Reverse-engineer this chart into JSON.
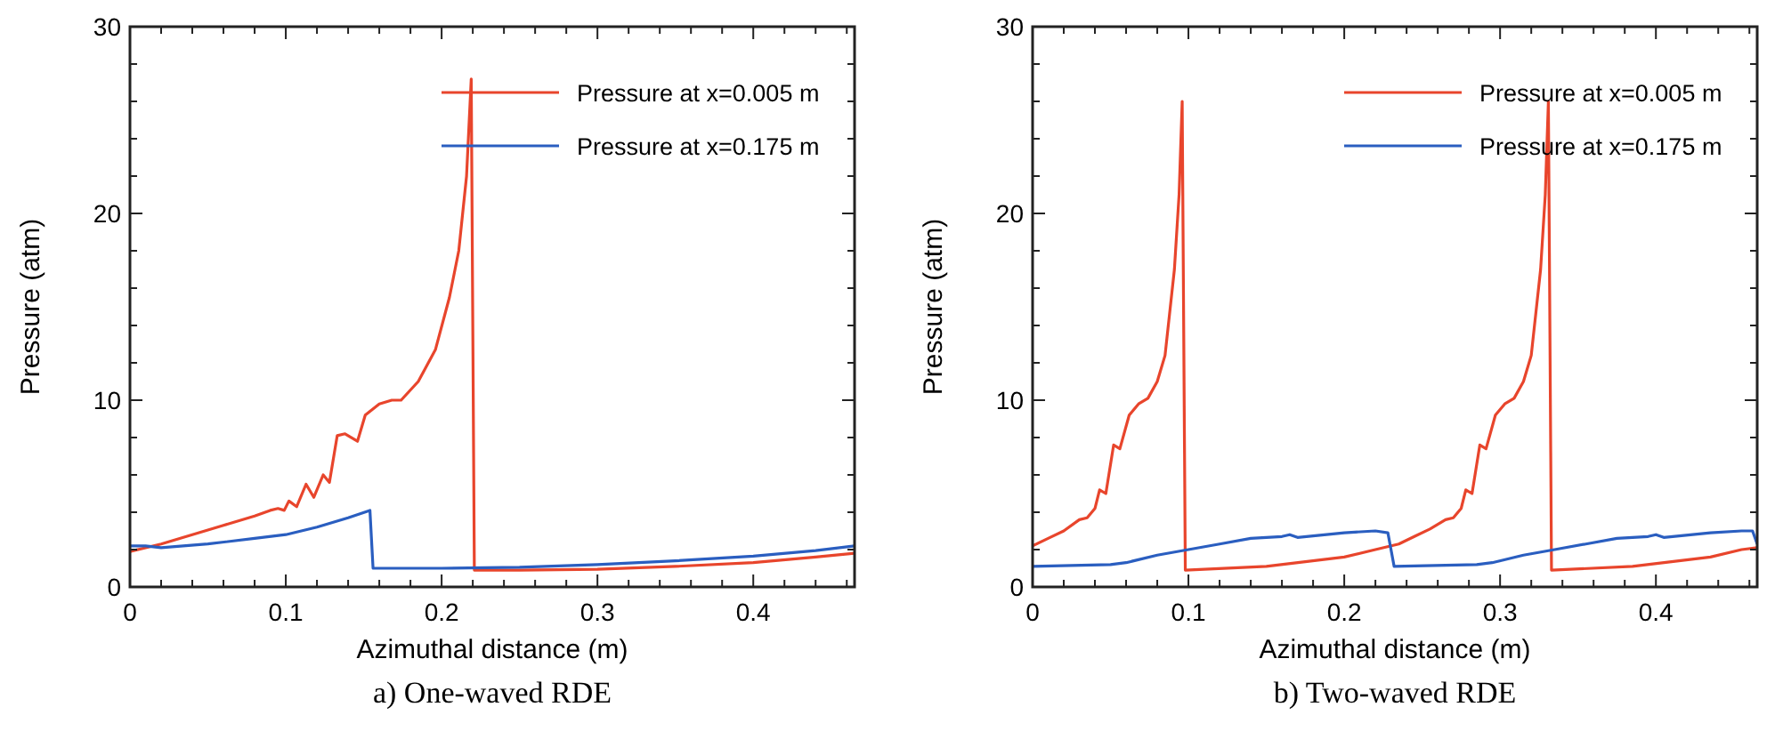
{
  "chart_data": [
    {
      "type": "line",
      "xlabel": "Azimuthal distance (m)",
      "ylabel": "Pressure (atm)",
      "annotations": [
        "a) One-waved RDE"
      ],
      "legend": "top right",
      "grid": false,
      "xlim": [
        0,
        0.465
      ],
      "ylim": [
        0,
        30
      ],
      "xticks": [
        0,
        {
          "value": 0.02,
          "label": null
        },
        {
          "value": 0.04,
          "label": null
        },
        {
          "value": 0.06,
          "label": null
        },
        {
          "value": 0.08,
          "label": null
        },
        0.1,
        {
          "value": 0.12,
          "label": null
        },
        {
          "value": 0.14,
          "label": null
        },
        {
          "value": 0.16,
          "label": null
        },
        {
          "value": 0.18,
          "label": null
        },
        0.2,
        {
          "value": 0.22,
          "label": null
        },
        {
          "value": 0.24,
          "label": null
        },
        {
          "value": 0.26,
          "label": null
        },
        {
          "value": 0.28,
          "label": null
        },
        0.3,
        {
          "value": 0.32,
          "label": null
        },
        {
          "value": 0.34,
          "label": null
        },
        {
          "value": 0.36,
          "label": null
        },
        {
          "value": 0.38,
          "label": null
        },
        0.4,
        {
          "value": 0.42,
          "label": null
        },
        {
          "value": 0.44,
          "label": null
        },
        {
          "value": 0.46,
          "label": null
        }
      ],
      "yticks": [
        0,
        {
          "value": 2,
          "label": null
        },
        {
          "value": 4,
          "label": null
        },
        {
          "value": 6,
          "label": null
        },
        {
          "value": 8,
          "label": null
        },
        10,
        {
          "value": 12,
          "label": null
        },
        {
          "value": 14,
          "label": null
        },
        {
          "value": 16,
          "label": null
        },
        {
          "value": 18,
          "label": null
        },
        20,
        {
          "value": 22,
          "label": null
        },
        {
          "value": 24,
          "label": null
        },
        {
          "value": 26,
          "label": null
        },
        {
          "value": 28,
          "label": null
        },
        30
      ],
      "series": [
        {
          "name": "Pressure at x=0.005 m",
          "color": "#e8452c",
          "x": [
            0,
            0.02,
            0.04,
            0.06,
            0.08,
            0.09,
            0.095,
            0.099,
            0.102,
            0.107,
            0.113,
            0.118,
            0.124,
            0.128,
            0.133,
            0.138,
            0.146,
            0.151,
            0.16,
            0.168,
            0.174,
            0.185,
            0.196,
            0.205,
            0.211,
            0.216,
            0.219,
            0.221,
            0.25,
            0.3,
            0.35,
            0.4,
            0.44,
            0.465
          ],
          "values": [
            1.9,
            2.3,
            2.8,
            3.3,
            3.8,
            4.1,
            4.2,
            4.1,
            4.6,
            4.3,
            5.5,
            4.8,
            6.0,
            5.6,
            8.1,
            8.2,
            7.8,
            9.2,
            9.8,
            10.0,
            10.0,
            11,
            12.7,
            15.5,
            18,
            22,
            27.2,
            0.9,
            0.9,
            0.95,
            1.1,
            1.3,
            1.6,
            1.8
          ]
        },
        {
          "name": "Pressure at x=0.175 m",
          "color": "#2a5ec0",
          "x": [
            0,
            0.01,
            0.02,
            0.05,
            0.08,
            0.1,
            0.12,
            0.14,
            0.154,
            0.156,
            0.2,
            0.25,
            0.3,
            0.35,
            0.4,
            0.44,
            0.465
          ],
          "values": [
            2.2,
            2.2,
            2.1,
            2.3,
            2.6,
            2.8,
            3.2,
            3.7,
            4.1,
            1.0,
            1.0,
            1.05,
            1.2,
            1.4,
            1.65,
            1.95,
            2.2
          ]
        }
      ]
    },
    {
      "type": "line",
      "xlabel": "Azimuthal distance (m)",
      "ylabel": "Pressure (atm)",
      "annotations": [
        "b) Two-waved RDE"
      ],
      "legend": "top right",
      "grid": false,
      "xlim": [
        0,
        0.465
      ],
      "ylim": [
        0,
        30
      ],
      "xticks": [
        0,
        {
          "value": 0.02,
          "label": null
        },
        {
          "value": 0.04,
          "label": null
        },
        {
          "value": 0.06,
          "label": null
        },
        {
          "value": 0.08,
          "label": null
        },
        0.1,
        {
          "value": 0.12,
          "label": null
        },
        {
          "value": 0.14,
          "label": null
        },
        {
          "value": 0.16,
          "label": null
        },
        {
          "value": 0.18,
          "label": null
        },
        0.2,
        {
          "value": 0.22,
          "label": null
        },
        {
          "value": 0.24,
          "label": null
        },
        {
          "value": 0.26,
          "label": null
        },
        {
          "value": 0.28,
          "label": null
        },
        0.3,
        {
          "value": 0.32,
          "label": null
        },
        {
          "value": 0.34,
          "label": null
        },
        {
          "value": 0.36,
          "label": null
        },
        {
          "value": 0.38,
          "label": null
        },
        0.4,
        {
          "value": 0.42,
          "label": null
        },
        {
          "value": 0.44,
          "label": null
        },
        {
          "value": 0.46,
          "label": null
        }
      ],
      "yticks": [
        0,
        {
          "value": 2,
          "label": null
        },
        {
          "value": 4,
          "label": null
        },
        {
          "value": 6,
          "label": null
        },
        {
          "value": 8,
          "label": null
        },
        10,
        {
          "value": 12,
          "label": null
        },
        {
          "value": 14,
          "label": null
        },
        {
          "value": 16,
          "label": null
        },
        {
          "value": 18,
          "label": null
        },
        20,
        {
          "value": 22,
          "label": null
        },
        {
          "value": 24,
          "label": null
        },
        {
          "value": 26,
          "label": null
        },
        {
          "value": 28,
          "label": null
        },
        30
      ],
      "series": [
        {
          "name": "Pressure at x=0.005 m",
          "color": "#e8452c",
          "x": [
            0,
            0.01,
            0.02,
            0.03,
            0.035,
            0.04,
            0.043,
            0.047,
            0.052,
            0.056,
            0.062,
            0.068,
            0.074,
            0.08,
            0.085,
            0.091,
            0.094,
            0.096,
            0.098,
            0.15,
            0.2,
            0.22,
            0.235,
            0.245,
            0.255,
            0.265,
            0.27,
            0.275,
            0.278,
            0.282,
            0.287,
            0.291,
            0.297,
            0.303,
            0.309,
            0.315,
            0.32,
            0.326,
            0.329,
            0.331,
            0.333,
            0.385,
            0.435,
            0.455,
            0.465
          ],
          "values": [
            2.2,
            2.6,
            3.0,
            3.6,
            3.7,
            4.2,
            5.2,
            5.0,
            7.6,
            7.4,
            9.2,
            9.8,
            10.1,
            11,
            12.4,
            17,
            21,
            26,
            0.9,
            1.1,
            1.6,
            2.0,
            2.3,
            2.7,
            3.1,
            3.6,
            3.7,
            4.2,
            5.2,
            5.0,
            7.6,
            7.4,
            9.2,
            9.8,
            10.1,
            11,
            12.4,
            17,
            21,
            26,
            0.9,
            1.1,
            1.6,
            2.0,
            2.1
          ]
        },
        {
          "name": "Pressure at x=0.175 m",
          "color": "#2a5ec0",
          "x": [
            0,
            0.05,
            0.06,
            0.08,
            0.1,
            0.12,
            0.14,
            0.16,
            0.165,
            0.17,
            0.2,
            0.22,
            0.228,
            0.232,
            0.285,
            0.295,
            0.315,
            0.335,
            0.355,
            0.375,
            0.395,
            0.4,
            0.405,
            0.435,
            0.455,
            0.462,
            0.465
          ],
          "values": [
            1.1,
            1.2,
            1.3,
            1.7,
            2.0,
            2.3,
            2.6,
            2.7,
            2.8,
            2.65,
            2.9,
            3.0,
            2.9,
            1.1,
            1.2,
            1.3,
            1.7,
            2.0,
            2.3,
            2.6,
            2.7,
            2.8,
            2.65,
            2.9,
            3.0,
            3.0,
            2.3
          ]
        }
      ]
    }
  ]
}
